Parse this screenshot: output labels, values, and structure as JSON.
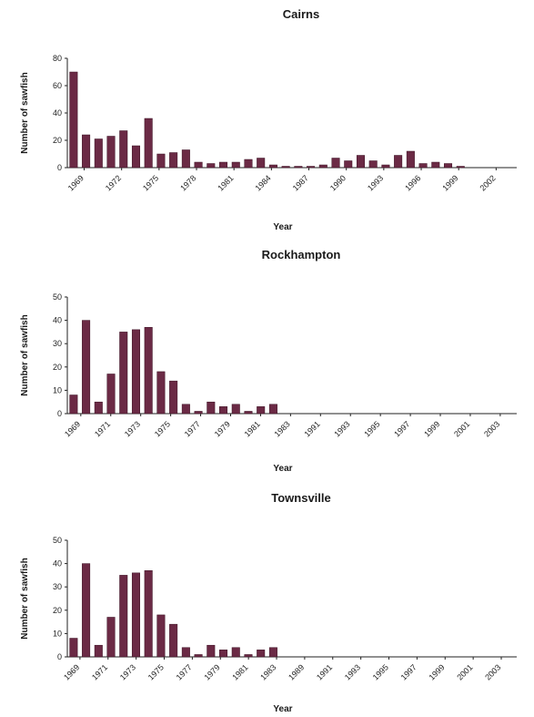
{
  "chart_data": [
    {
      "type": "bar",
      "title": "Cairns",
      "xlabel": "Year",
      "ylabel": "Number of sawfish",
      "ylim": [
        0,
        80
      ],
      "yticks": [
        0,
        20,
        40,
        60,
        80
      ],
      "categories": [
        "1969",
        "1970",
        "1971",
        "1972",
        "1973",
        "1974",
        "1975",
        "1976",
        "1977",
        "1978",
        "1979",
        "1980",
        "1981",
        "1982",
        "1983",
        "1984",
        "1985",
        "1986",
        "1987",
        "1988",
        "1989",
        "1990",
        "1991",
        "1992",
        "1993",
        "1994",
        "1995",
        "1996",
        "1997",
        "1998",
        "1999",
        "2000",
        "2001",
        "2002",
        "2003",
        "2004"
      ],
      "xtick_labels": [
        "1969",
        "1972",
        "1975",
        "1978",
        "1981",
        "1984",
        "1987",
        "1990",
        "1993",
        "1996",
        "1999",
        "2002"
      ],
      "values": [
        70,
        24,
        21,
        23,
        27,
        16,
        36,
        10,
        11,
        13,
        4,
        3,
        4,
        4,
        6,
        7,
        2,
        1,
        1,
        1,
        2,
        7,
        5,
        9,
        5,
        2,
        9,
        12,
        3,
        4,
        3,
        1,
        0,
        0,
        0,
        0
      ],
      "grid": false,
      "color": "#6b2a45"
    },
    {
      "type": "bar",
      "title": "Rockhampton",
      "xlabel": "Year",
      "ylabel": "Number of sawfish",
      "ylim": [
        0,
        50
      ],
      "yticks": [
        0,
        10,
        20,
        30,
        40,
        50
      ],
      "categories": [
        "1969",
        "1970",
        "1971",
        "1972",
        "1973",
        "1974",
        "1975",
        "1976",
        "1977",
        "1978",
        "1979",
        "1980",
        "1981",
        "1982",
        "1983",
        "1984",
        "1985",
        "1986",
        "1987",
        "1988",
        "1989",
        "1990",
        "1991",
        "1992",
        "1993",
        "1994",
        "1995",
        "1996",
        "1997",
        "1998",
        "1999",
        "2000",
        "2001",
        "2002",
        "2003",
        "2004"
      ],
      "xtick_labels": [
        "1969",
        "1971",
        "1973",
        "1975",
        "1977",
        "1979",
        "1981",
        "1983",
        "1991",
        "1993",
        "1995",
        "1997",
        "1999",
        "2001",
        "2003"
      ],
      "values": [
        8,
        40,
        5,
        17,
        35,
        36,
        37,
        18,
        14,
        4,
        1,
        5,
        3,
        4,
        1,
        3,
        4,
        0,
        0,
        0,
        0,
        0,
        0,
        0,
        0,
        0,
        0,
        0,
        0,
        0,
        0,
        0,
        0,
        0,
        0,
        0
      ],
      "grid": false,
      "color": "#6b2a45"
    },
    {
      "type": "bar",
      "title": "Townsville",
      "xlabel": "Year",
      "ylabel": "Number of sawfish",
      "ylim": [
        0,
        50
      ],
      "yticks": [
        0,
        10,
        20,
        30,
        40,
        50
      ],
      "categories": [
        "1969",
        "1970",
        "1971",
        "1972",
        "1973",
        "1974",
        "1975",
        "1976",
        "1977",
        "1978",
        "1979",
        "1980",
        "1981",
        "1982",
        "1983",
        "1984",
        "1985",
        "1986",
        "1987",
        "1988",
        "1989",
        "1990",
        "1991",
        "1992",
        "1993",
        "1994",
        "1995",
        "1996",
        "1997",
        "1998",
        "1999",
        "2000",
        "2001",
        "2002",
        "2003",
        "2004"
      ],
      "xtick_labels": [
        "1969",
        "1971",
        "1973",
        "1975",
        "1977",
        "1979",
        "1981",
        "1983",
        "1989",
        "1991",
        "1993",
        "1995",
        "1997",
        "1999",
        "2001",
        "2003"
      ],
      "values": [
        8,
        40,
        5,
        17,
        35,
        36,
        37,
        18,
        14,
        4,
        1,
        5,
        3,
        4,
        1,
        3,
        4,
        0,
        0,
        0,
        0,
        0,
        0,
        0,
        0,
        0,
        0,
        0,
        0,
        0,
        0,
        0,
        0,
        0,
        0,
        0
      ],
      "grid": false,
      "color": "#6b2a45"
    }
  ]
}
